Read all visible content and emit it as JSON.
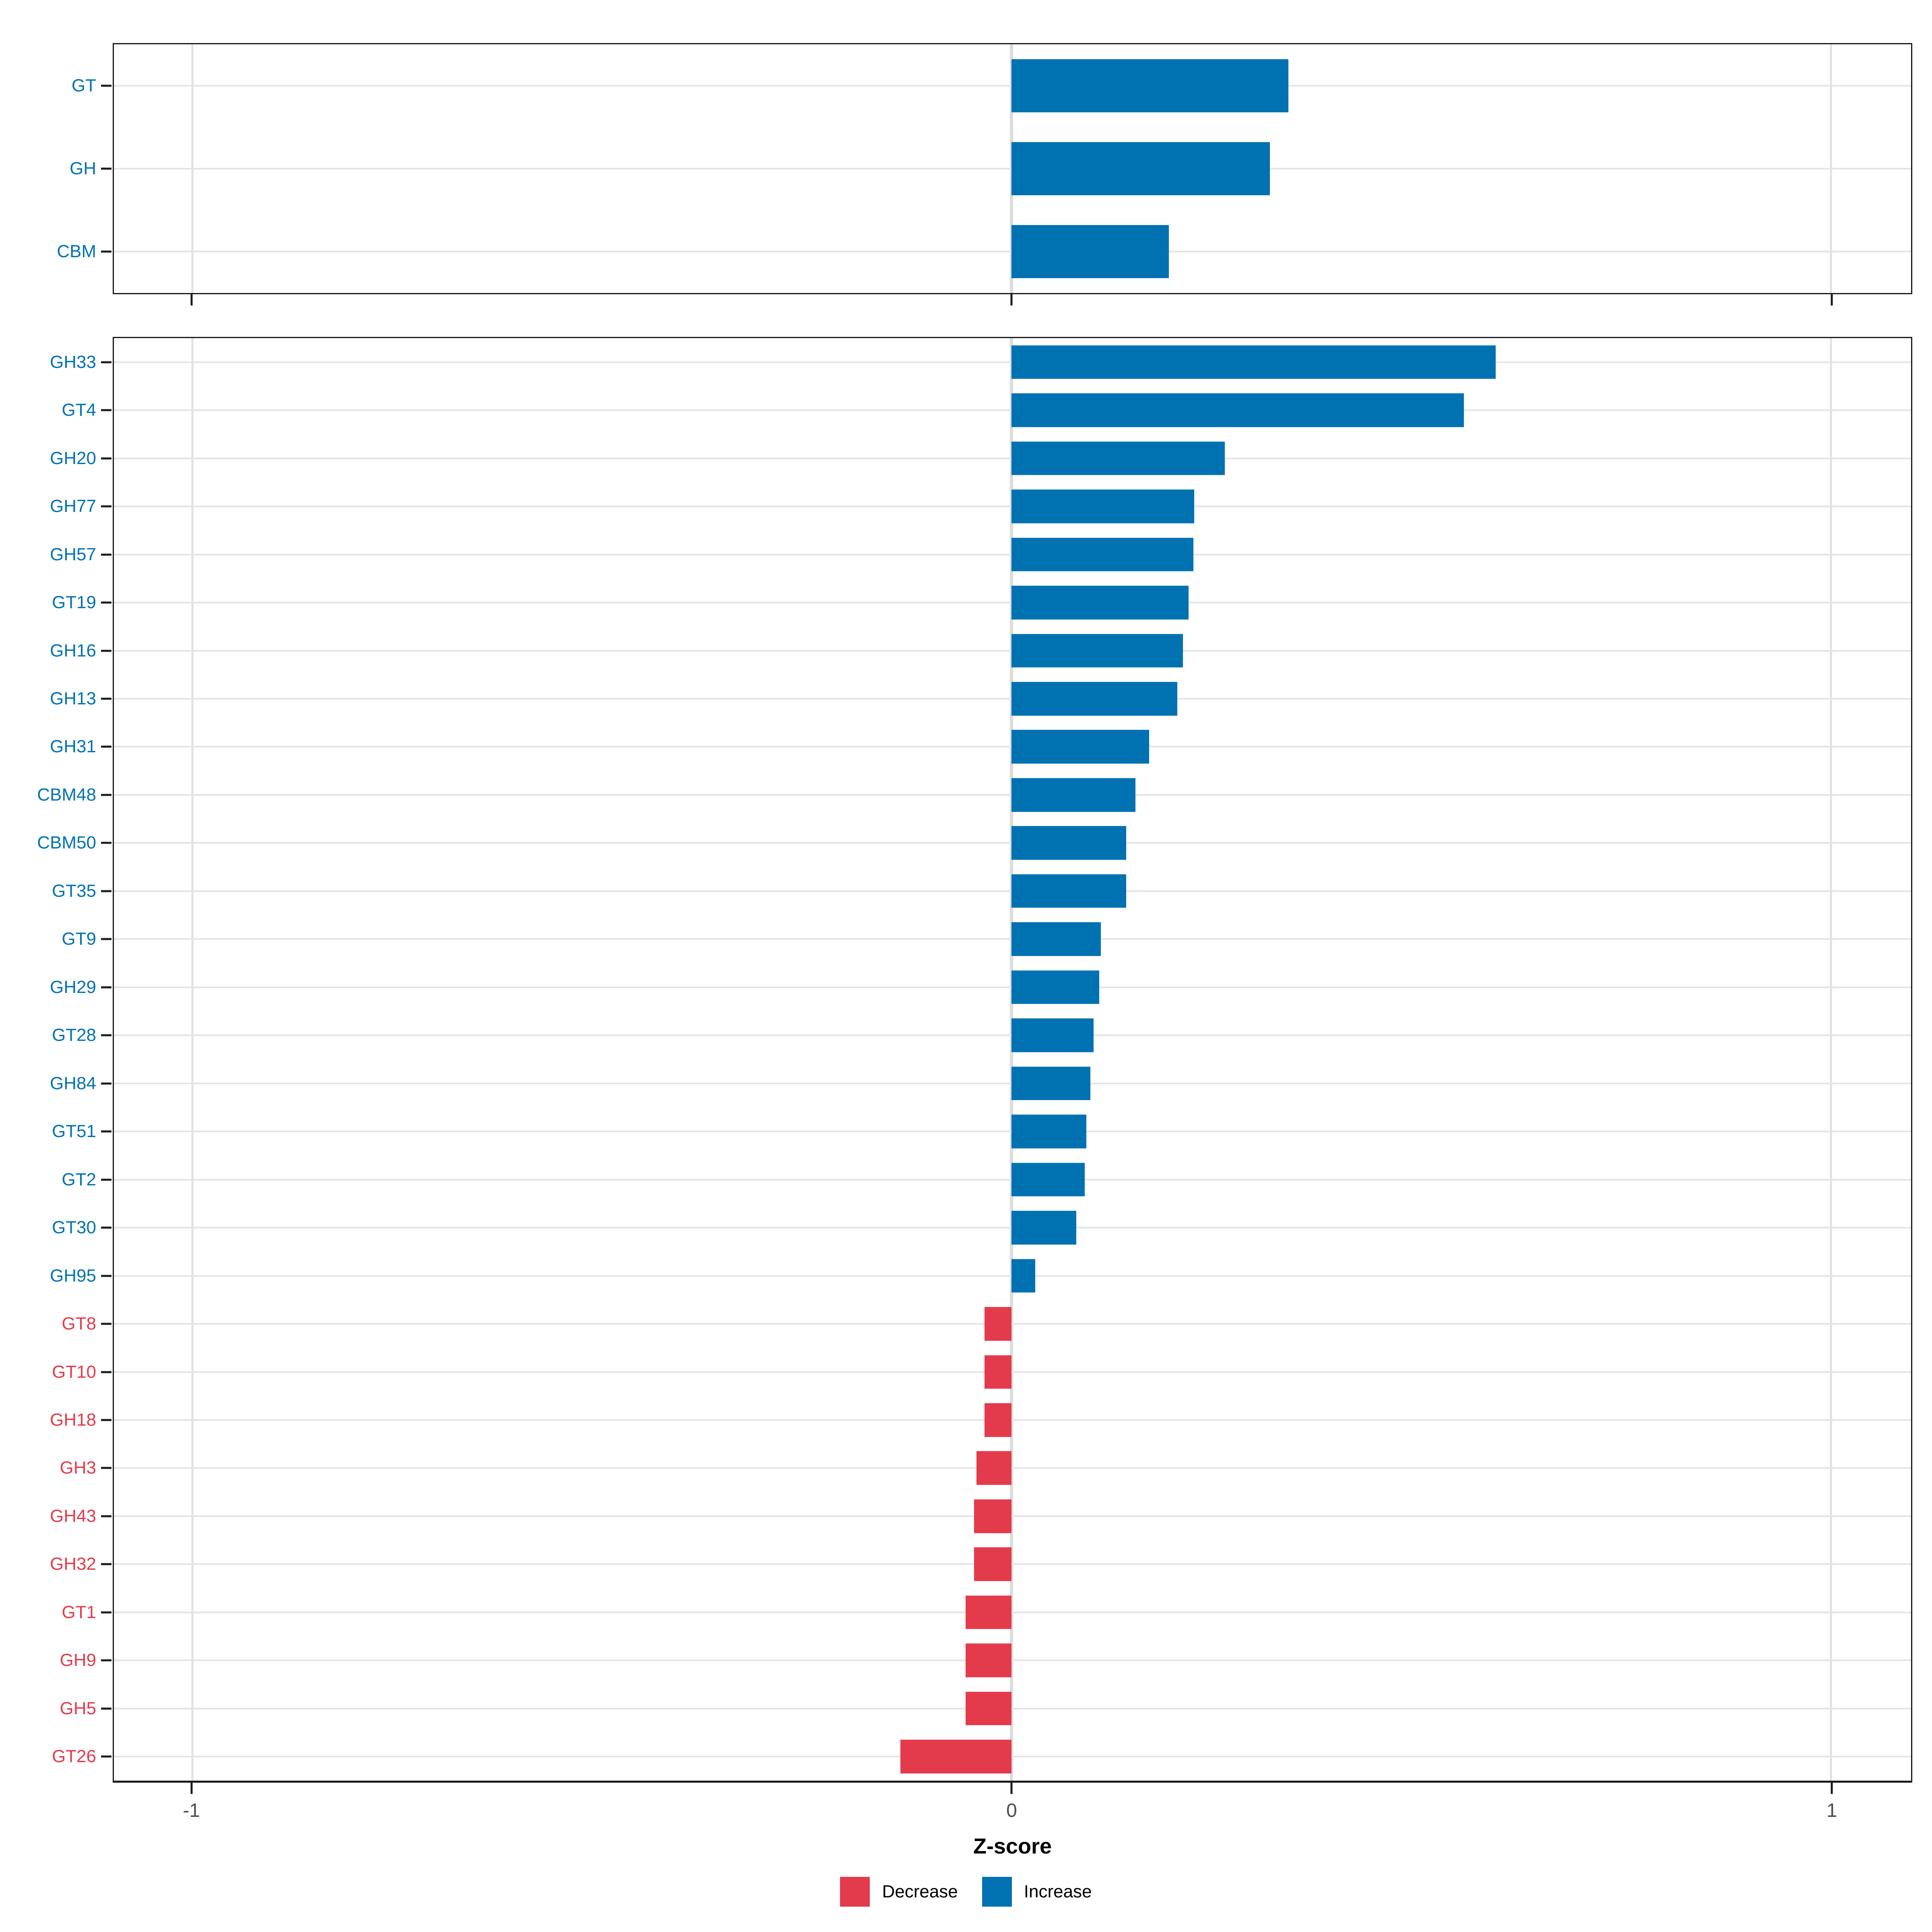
{
  "chart_data": {
    "type": "bar",
    "orientation": "horizontal",
    "xlabel": "Z-score",
    "axis": {
      "domain_min": -1.096,
      "domain_max": 1.098,
      "ticks": [
        {
          "value": -1,
          "label": "-1"
        },
        {
          "value": 0,
          "label": "0"
        },
        {
          "value": 1,
          "label": "1"
        }
      ]
    },
    "grid": true,
    "legend_position": "bottom",
    "legend_items": [
      {
        "label": "Decrease",
        "key": "decrease"
      },
      {
        "label": "Increase",
        "key": "increase"
      }
    ],
    "colors": {
      "increase": "#0072B2",
      "decrease": "#E33B4B"
    },
    "panels": [
      {
        "name": "summary",
        "categories": [
          "GT",
          "GH",
          "CBM"
        ],
        "values": [
          0.338,
          0.315,
          0.192
        ],
        "directions": [
          "increase",
          "increase",
          "increase"
        ]
      },
      {
        "name": "families",
        "categories": [
          "GH33",
          "GT4",
          "GH20",
          "GH77",
          "GH57",
          "GT19",
          "GH16",
          "GH13",
          "GH31",
          "CBM48",
          "CBM50",
          "GT35",
          "GT9",
          "GH29",
          "GT28",
          "GH84",
          "GT51",
          "GT2",
          "GT30",
          "GH95",
          "GT8",
          "GT10",
          "GH18",
          "GH3",
          "GH43",
          "GH32",
          "GT1",
          "GH9",
          "GH5",
          "GT26"
        ],
        "values": [
          0.591,
          0.552,
          0.26,
          0.223,
          0.222,
          0.216,
          0.209,
          0.202,
          0.168,
          0.151,
          0.14,
          0.14,
          0.109,
          0.107,
          0.1,
          0.096,
          0.091,
          0.089,
          0.079,
          0.029,
          -0.033,
          -0.033,
          -0.033,
          -0.043,
          -0.046,
          -0.046,
          -0.056,
          -0.056,
          -0.056,
          -0.136
        ],
        "directions": [
          "increase",
          "increase",
          "increase",
          "increase",
          "increase",
          "increase",
          "increase",
          "increase",
          "increase",
          "increase",
          "increase",
          "increase",
          "increase",
          "increase",
          "increase",
          "increase",
          "increase",
          "increase",
          "increase",
          "increase",
          "decrease",
          "decrease",
          "decrease",
          "decrease",
          "decrease",
          "decrease",
          "decrease",
          "decrease",
          "decrease",
          "decrease"
        ]
      }
    ]
  }
}
